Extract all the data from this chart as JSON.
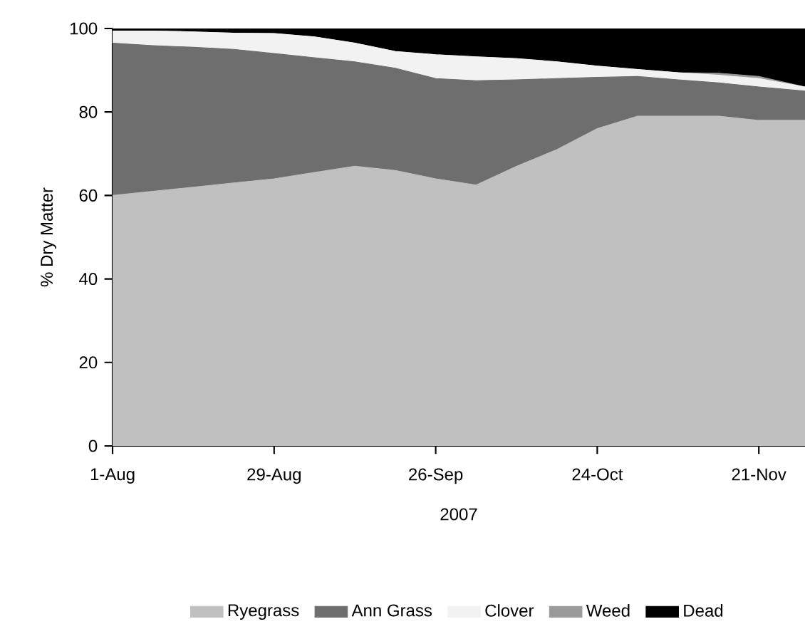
{
  "chart_data": {
    "type": "area",
    "stacked": true,
    "xlabel": "2007",
    "ylabel": "% Dry Matter",
    "x": [
      "2007-08-01",
      "2007-08-08",
      "2007-08-15",
      "2007-08-22",
      "2007-08-29",
      "2007-09-05",
      "2007-09-12",
      "2007-09-19",
      "2007-09-26",
      "2007-10-03",
      "2007-10-10",
      "2007-10-17",
      "2007-10-24",
      "2007-10-31",
      "2007-11-07",
      "2007-11-14",
      "2007-11-21",
      "2007-11-29"
    ],
    "series": [
      {
        "name": "Ryegrass",
        "color": "#c0c0c0",
        "values": [
          60,
          61,
          62,
          63,
          64,
          65.5,
          67,
          66,
          64,
          62.5,
          67,
          71,
          76,
          79,
          79,
          79,
          78,
          78
        ]
      },
      {
        "name": "Ann Grass",
        "color": "#6e6e6e",
        "values": [
          36.5,
          34.9,
          33.5,
          32,
          30,
          27.5,
          25,
          24.5,
          24,
          25,
          20.7,
          17,
          12.3,
          9.5,
          8.7,
          8,
          8,
          7
        ]
      },
      {
        "name": "Clover",
        "color": "#f2f2f2",
        "values": [
          2.9,
          3.5,
          3.7,
          3.9,
          4.8,
          5,
          4.5,
          4,
          5.7,
          5.7,
          5.1,
          4,
          2.7,
          1.7,
          1.7,
          1.8,
          2,
          1
        ]
      },
      {
        "name": "Weed",
        "color": "#9a9a9a",
        "values": [
          0,
          0,
          0,
          0,
          0,
          0,
          0,
          0,
          0,
          0,
          0,
          0,
          0,
          0,
          0,
          0.5,
          0.5,
          0
        ]
      },
      {
        "name": "Dead",
        "color": "#000000",
        "values": [
          0.6,
          0.6,
          0.8,
          1.1,
          1.2,
          2,
          3.5,
          5.5,
          6.3,
          6.8,
          7.2,
          8,
          9,
          9.8,
          10.6,
          10.7,
          11.5,
          14
        ]
      }
    ],
    "xlim": [
      "2007-08-01",
      "2007-11-29"
    ],
    "xticks": [
      {
        "value": "2007-08-01",
        "label": "1-Aug"
      },
      {
        "value": "2007-08-29",
        "label": "29-Aug"
      },
      {
        "value": "2007-09-26",
        "label": "26-Sep"
      },
      {
        "value": "2007-10-24",
        "label": "24-Oct"
      },
      {
        "value": "2007-11-21",
        "label": "21-Nov"
      }
    ],
    "ylim": [
      0,
      100
    ],
    "yticks": [
      0,
      20,
      40,
      60,
      80,
      100
    ],
    "legend": "bottom"
  }
}
